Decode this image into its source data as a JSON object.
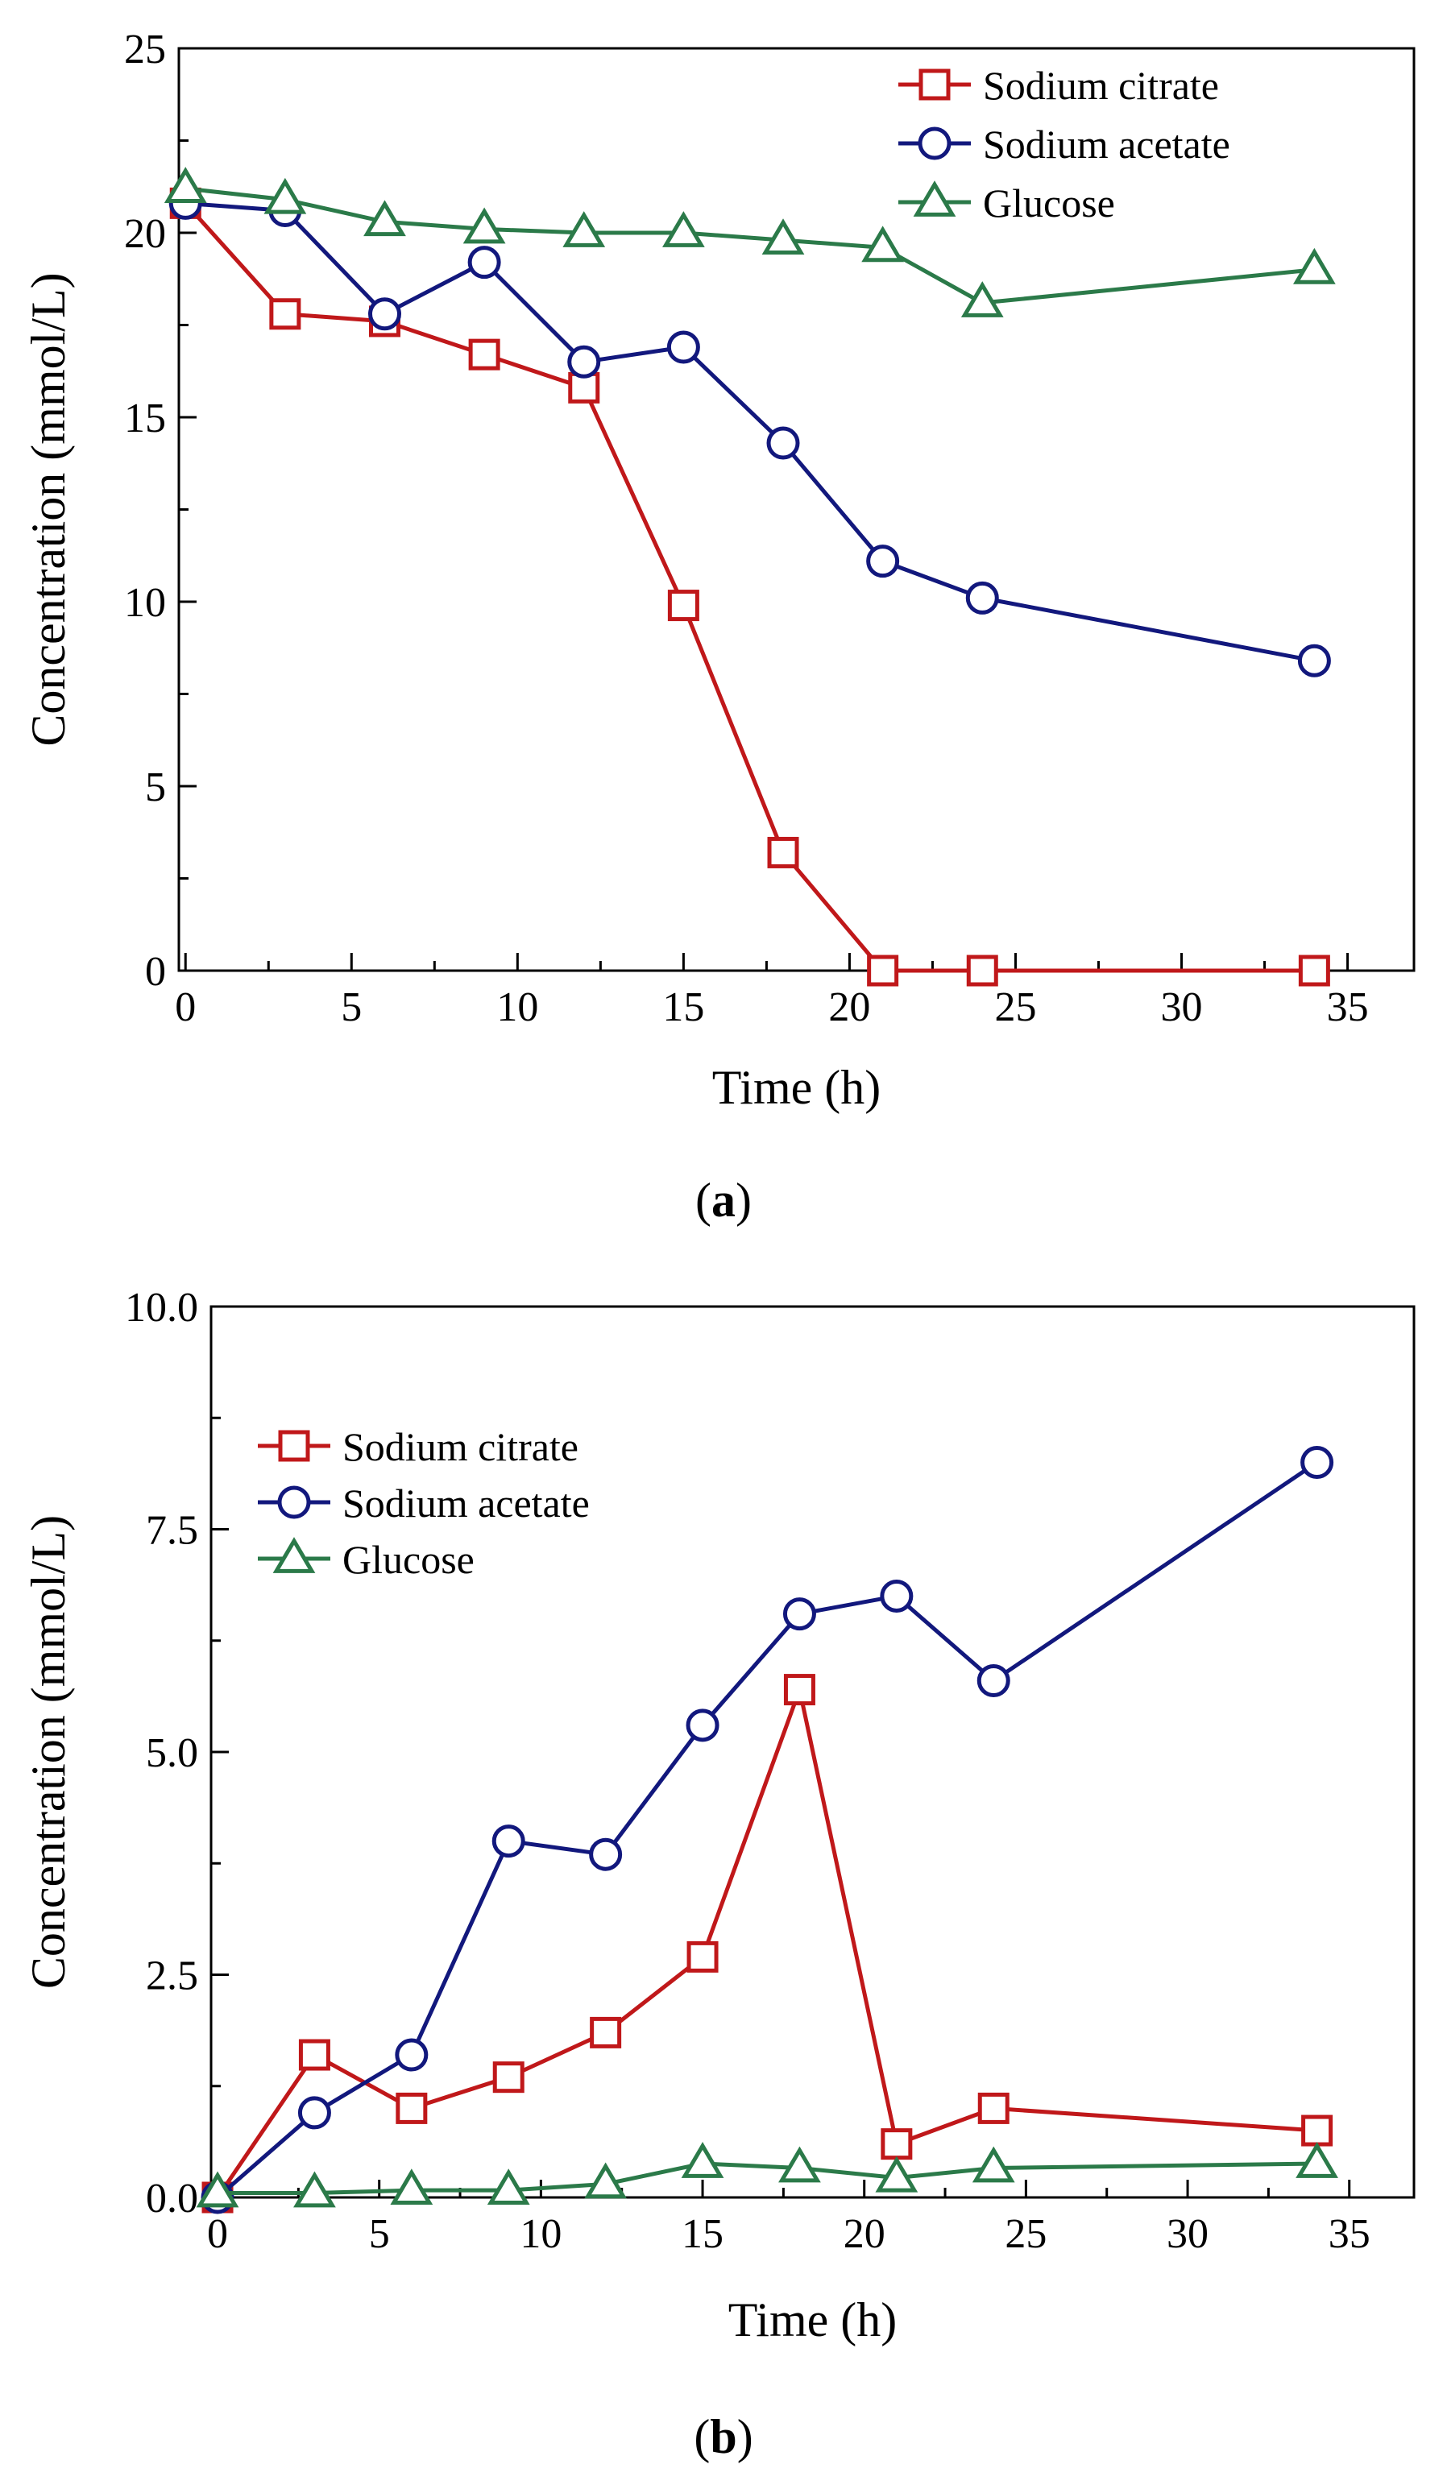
{
  "colors": {
    "citrate": "#c0181a",
    "acetate": "#12187d",
    "glucose": "#2b7a49",
    "axis": "#000000",
    "background": "#ffffff"
  },
  "panels": [
    {
      "label": "a",
      "xlabel": "Time (h)",
      "ylabel": "Concentration (mmol/L)"
    },
    {
      "label": "b",
      "xlabel": "Time (h)",
      "ylabel": "Concentration (mmol/L)"
    }
  ],
  "chart_data": [
    {
      "type": "line",
      "title": "",
      "panel_label": "a",
      "xlabel": "Time (h)",
      "ylabel": "Concentration (mmol/L)",
      "xlim": [
        -0.2,
        37
      ],
      "ylim": [
        0,
        25
      ],
      "xticks": [
        0,
        5,
        10,
        15,
        20,
        25,
        30,
        35
      ],
      "xtick_labels": [
        "0",
        "5",
        "10",
        "15",
        "20",
        "25",
        "30",
        "35"
      ],
      "yticks": [
        0,
        5,
        10,
        15,
        20,
        25
      ],
      "ytick_labels": [
        "0",
        "5",
        "10",
        "15",
        "20",
        "25"
      ],
      "legend_position": "top-right",
      "grid": false,
      "x": [
        0,
        3,
        6,
        9,
        12,
        15,
        18,
        21,
        24,
        34
      ],
      "series": [
        {
          "name": "Sodium citrate",
          "marker": "square",
          "color": "#c0181a",
          "values": [
            20.8,
            17.8,
            17.6,
            16.7,
            15.8,
            9.9,
            3.2,
            0.0,
            0.0,
            0.0
          ]
        },
        {
          "name": "Sodium acetate",
          "marker": "circle",
          "color": "#12187d",
          "values": [
            20.8,
            20.6,
            17.8,
            19.2,
            16.5,
            16.9,
            14.3,
            11.1,
            10.1,
            8.4
          ]
        },
        {
          "name": "Glucose",
          "marker": "triangle",
          "color": "#2b7a49",
          "values": [
            21.2,
            20.9,
            20.3,
            20.1,
            20.0,
            20.0,
            19.8,
            19.6,
            18.1,
            19.0
          ]
        }
      ]
    },
    {
      "type": "line",
      "title": "",
      "panel_label": "b",
      "xlabel": "Time (h)",
      "ylabel": "Concentration (mmol/L)",
      "xlim": [
        -0.2,
        37
      ],
      "ylim": [
        0,
        10
      ],
      "xticks": [
        0,
        5,
        10,
        15,
        20,
        25,
        30,
        35
      ],
      "xtick_labels": [
        "0",
        "5",
        "10",
        "15",
        "20",
        "25",
        "30",
        "35"
      ],
      "yticks": [
        0,
        2.5,
        5,
        7.5,
        10
      ],
      "ytick_labels": [
        "0.0",
        "2.5",
        "5.0",
        "7.5",
        "10.0"
      ],
      "legend_position": "top-left",
      "grid": false,
      "x": [
        0,
        3,
        6,
        9,
        12,
        15,
        18,
        21,
        24,
        34
      ],
      "series": [
        {
          "name": "Sodium citrate",
          "marker": "square",
          "color": "#c0181a",
          "values": [
            0.0,
            1.6,
            1.0,
            1.35,
            1.85,
            2.7,
            5.7,
            0.6,
            1.0,
            0.75
          ]
        },
        {
          "name": "Sodium acetate",
          "marker": "circle",
          "color": "#12187d",
          "values": [
            0.0,
            0.95,
            1.6,
            4.0,
            3.85,
            5.3,
            6.55,
            6.75,
            5.8,
            8.25
          ]
        },
        {
          "name": "Glucose",
          "marker": "triangle",
          "color": "#2b7a49",
          "values": [
            0.05,
            0.05,
            0.08,
            0.08,
            0.15,
            0.38,
            0.33,
            0.22,
            0.33,
            0.38
          ]
        }
      ]
    }
  ]
}
